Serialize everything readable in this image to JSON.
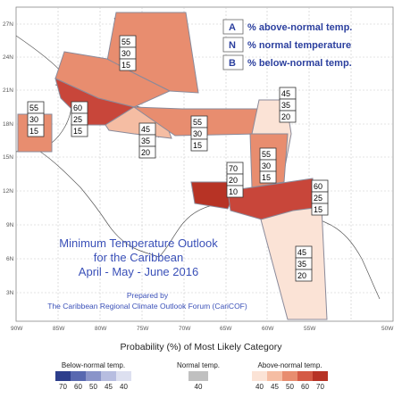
{
  "map": {
    "title_lines": [
      "Minimum Temperature Outlook",
      "for the Caribbean",
      "April - May - June 2016"
    ],
    "prepared_lines": [
      "Prepared by",
      "The Caribbean Regional Climate Outlook Forum (CariCOF)"
    ],
    "legend": [
      {
        "key": "A",
        "text": "% above-normal temp."
      },
      {
        "key": "N",
        "text": "% normal temperature"
      },
      {
        "key": "B",
        "text": "% below-normal temp."
      }
    ],
    "lat_labels": [
      "27N",
      "24N",
      "21N",
      "18N",
      "15N",
      "12N",
      "9N",
      "6N",
      "3N"
    ],
    "lon_labels": [
      "90W",
      "85W",
      "80W",
      "75W",
      "70W",
      "65W",
      "60W",
      "55W",
      "50W"
    ],
    "regions": [
      {
        "name": "gulf-mexico-south",
        "above": 55,
        "normal": 30,
        "near": 15
      },
      {
        "name": "bahamas",
        "above": 55,
        "normal": 30,
        "near": 15
      },
      {
        "name": "cuba-bahamas",
        "above": 60,
        "normal": 25,
        "near": 15
      },
      {
        "name": "central-caribbean",
        "above": 45,
        "normal": 35,
        "near": 20
      },
      {
        "name": "greater-antilles",
        "above": 55,
        "normal": 30,
        "near": 15
      },
      {
        "name": "lesser-antilles-north",
        "above": 45,
        "normal": 35,
        "near": 20
      },
      {
        "name": "eastern-caribbean",
        "above": 55,
        "normal": 30,
        "near": 15
      },
      {
        "name": "abc-islands",
        "above": 70,
        "normal": 20,
        "near": 10
      },
      {
        "name": "trinidad-venezuela",
        "above": 60,
        "normal": 25,
        "near": 15
      },
      {
        "name": "guianas",
        "above": 45,
        "normal": 35,
        "near": 20
      }
    ]
  },
  "colorbar": {
    "title": "Probability (%) of Most Likely Category",
    "below": {
      "label": "Below-normal temp.",
      "ticks": [
        "70",
        "60",
        "50",
        "45",
        "40"
      ],
      "colors": [
        "#2d3e8c",
        "#5868b0",
        "#8a94c9",
        "#b7bde0",
        "#dde0f0"
      ]
    },
    "normal": {
      "label": "Normal temp.",
      "ticks": [
        "40"
      ],
      "colors": [
        "#c0c0c0"
      ]
    },
    "above": {
      "label": "Above-normal temp.",
      "ticks": [
        "40",
        "45",
        "50",
        "60",
        "70"
      ],
      "colors": [
        "#fbe3d6",
        "#f5bda3",
        "#e88d6f",
        "#d45a45",
        "#b73325"
      ]
    }
  }
}
